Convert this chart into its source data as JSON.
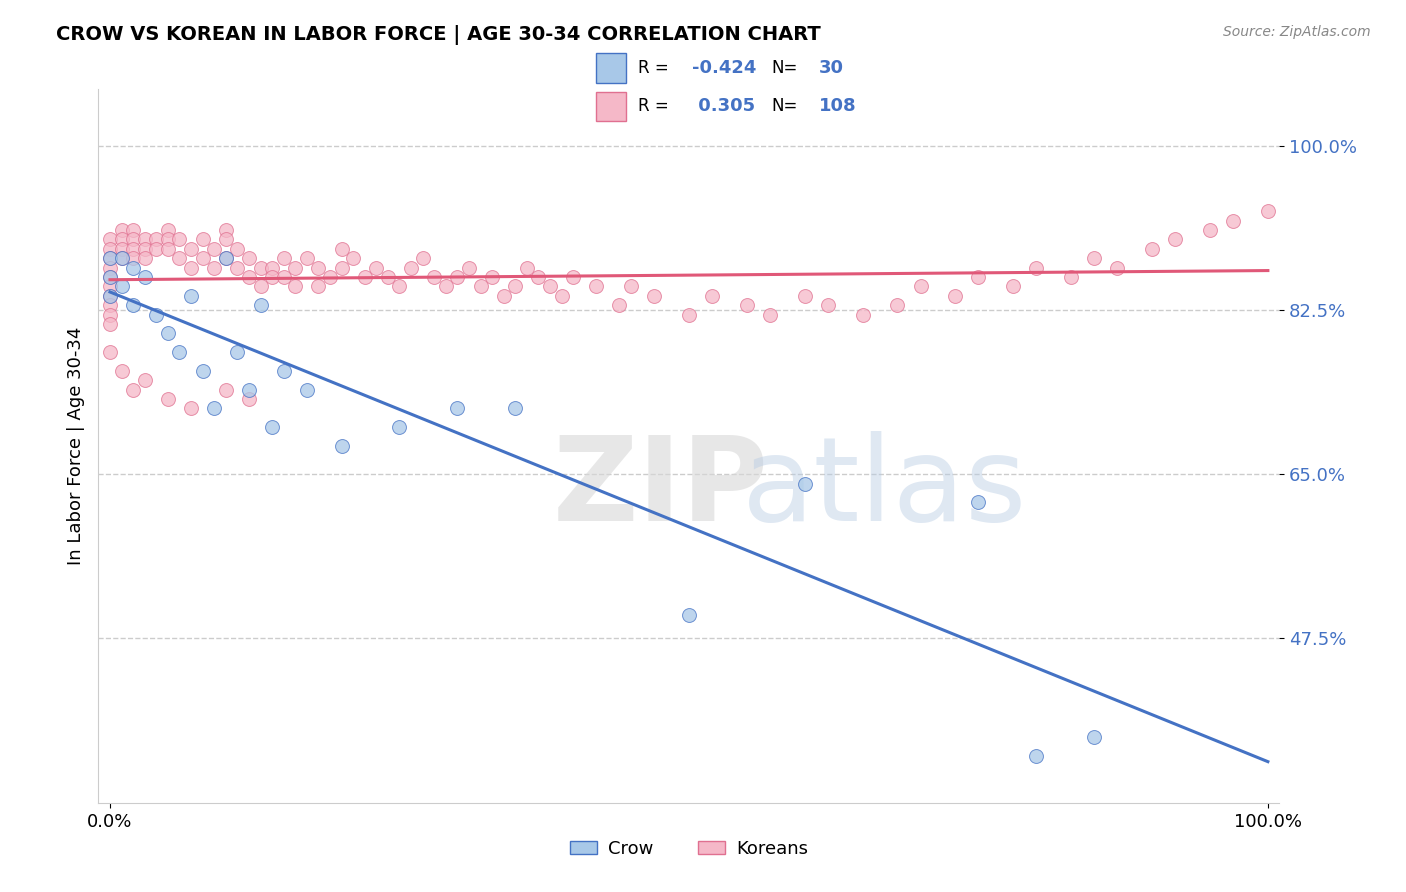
{
  "title": "CROW VS KOREAN IN LABOR FORCE | AGE 30-34 CORRELATION CHART",
  "source": "Source: ZipAtlas.com",
  "ylabel": "In Labor Force | Age 30-34",
  "crow_R": -0.424,
  "crow_N": 30,
  "korean_R": 0.305,
  "korean_N": 108,
  "crow_color": "#a8c8e8",
  "korean_color": "#f5b8c8",
  "crow_edge_color": "#4472c4",
  "korean_edge_color": "#e07090",
  "crow_line_color": "#4472c4",
  "korean_line_color": "#e05878",
  "legend_label_crow": "Crow",
  "legend_label_korean": "Koreans",
  "ytick_vals": [
    0.475,
    0.65,
    0.825,
    1.0
  ],
  "ytick_labels": [
    "47.5%",
    "65.0%",
    "82.5%",
    "100.0%"
  ],
  "xtick_vals": [
    0.0,
    1.0
  ],
  "xtick_labels": [
    "0.0%",
    "100.0%"
  ],
  "crow_x": [
    0.0,
    0.0,
    0.0,
    0.01,
    0.01,
    0.02,
    0.02,
    0.03,
    0.04,
    0.05,
    0.06,
    0.07,
    0.08,
    0.09,
    0.1,
    0.11,
    0.12,
    0.13,
    0.14,
    0.15,
    0.17,
    0.2,
    0.25,
    0.3,
    0.35,
    0.5,
    0.6,
    0.75,
    0.8,
    0.85
  ],
  "crow_y": [
    0.88,
    0.86,
    0.84,
    0.88,
    0.85,
    0.87,
    0.83,
    0.86,
    0.82,
    0.8,
    0.78,
    0.84,
    0.76,
    0.72,
    0.88,
    0.78,
    0.74,
    0.83,
    0.7,
    0.76,
    0.74,
    0.68,
    0.7,
    0.72,
    0.72,
    0.5,
    0.64,
    0.62,
    0.35,
    0.37
  ],
  "korean_x": [
    0.0,
    0.0,
    0.0,
    0.0,
    0.0,
    0.0,
    0.0,
    0.0,
    0.0,
    0.0,
    0.01,
    0.01,
    0.01,
    0.01,
    0.02,
    0.02,
    0.02,
    0.02,
    0.03,
    0.03,
    0.03,
    0.04,
    0.04,
    0.05,
    0.05,
    0.05,
    0.06,
    0.06,
    0.07,
    0.07,
    0.08,
    0.08,
    0.09,
    0.09,
    0.1,
    0.1,
    0.1,
    0.11,
    0.11,
    0.12,
    0.12,
    0.13,
    0.13,
    0.14,
    0.14,
    0.15,
    0.15,
    0.16,
    0.16,
    0.17,
    0.18,
    0.18,
    0.19,
    0.2,
    0.2,
    0.21,
    0.22,
    0.23,
    0.24,
    0.25,
    0.26,
    0.27,
    0.28,
    0.29,
    0.3,
    0.31,
    0.32,
    0.33,
    0.34,
    0.35,
    0.36,
    0.37,
    0.38,
    0.39,
    0.4,
    0.42,
    0.44,
    0.45,
    0.47,
    0.5,
    0.52,
    0.55,
    0.57,
    0.6,
    0.62,
    0.65,
    0.68,
    0.7,
    0.73,
    0.75,
    0.78,
    0.8,
    0.83,
    0.85,
    0.87,
    0.9,
    0.92,
    0.95,
    0.97,
    1.0,
    0.0,
    0.01,
    0.02,
    0.03,
    0.05,
    0.07,
    0.1,
    0.12
  ],
  "korean_y": [
    0.9,
    0.89,
    0.88,
    0.87,
    0.86,
    0.85,
    0.84,
    0.83,
    0.82,
    0.81,
    0.91,
    0.9,
    0.89,
    0.88,
    0.91,
    0.9,
    0.89,
    0.88,
    0.9,
    0.89,
    0.88,
    0.9,
    0.89,
    0.91,
    0.9,
    0.89,
    0.9,
    0.88,
    0.89,
    0.87,
    0.9,
    0.88,
    0.89,
    0.87,
    0.91,
    0.9,
    0.88,
    0.89,
    0.87,
    0.88,
    0.86,
    0.87,
    0.85,
    0.87,
    0.86,
    0.88,
    0.86,
    0.87,
    0.85,
    0.88,
    0.87,
    0.85,
    0.86,
    0.89,
    0.87,
    0.88,
    0.86,
    0.87,
    0.86,
    0.85,
    0.87,
    0.88,
    0.86,
    0.85,
    0.86,
    0.87,
    0.85,
    0.86,
    0.84,
    0.85,
    0.87,
    0.86,
    0.85,
    0.84,
    0.86,
    0.85,
    0.83,
    0.85,
    0.84,
    0.82,
    0.84,
    0.83,
    0.82,
    0.84,
    0.83,
    0.82,
    0.83,
    0.85,
    0.84,
    0.86,
    0.85,
    0.87,
    0.86,
    0.88,
    0.87,
    0.89,
    0.9,
    0.91,
    0.92,
    0.93,
    0.78,
    0.76,
    0.74,
    0.75,
    0.73,
    0.72,
    0.74,
    0.73
  ]
}
